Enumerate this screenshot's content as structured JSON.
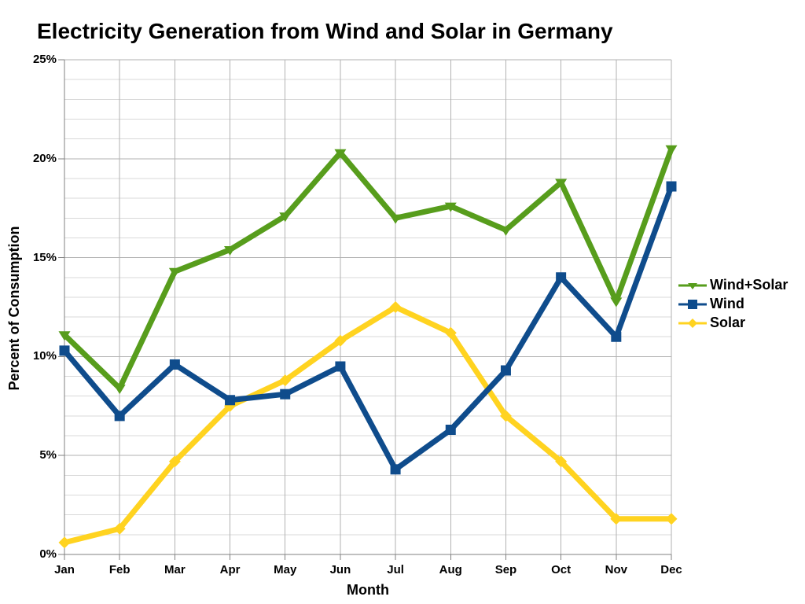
{
  "title": "Electricity Generation from Wind and Solar in Germany",
  "chart_data": {
    "type": "line",
    "title": "Electricity Generation from Wind and Solar in Germany",
    "xlabel": "Month",
    "ylabel": "Percent of Consumption",
    "categories": [
      "Jan",
      "Feb",
      "Mar",
      "Apr",
      "May",
      "Jun",
      "Jul",
      "Aug",
      "Sep",
      "Oct",
      "Nov",
      "Dec"
    ],
    "y_tick_labels": [
      "0%",
      "5%",
      "10%",
      "15%",
      "20%",
      "25%"
    ],
    "ylim": [
      0,
      25
    ],
    "y_major_step": 5,
    "y_minor_step": 1,
    "grid": true,
    "legend_position": "right",
    "series": [
      {
        "name": "Wind+Solar",
        "color": "#579D1C",
        "marker": "triangle-down",
        "values": [
          11.1,
          8.4,
          14.3,
          15.4,
          17.1,
          20.3,
          17.0,
          17.6,
          16.4,
          18.8,
          12.8,
          20.5
        ]
      },
      {
        "name": "Wind",
        "color": "#0F4C8C",
        "marker": "square",
        "values": [
          10.3,
          7.0,
          9.6,
          7.8,
          8.1,
          9.5,
          4.3,
          6.3,
          9.3,
          14.0,
          11.0,
          18.6
        ]
      },
      {
        "name": "Solar",
        "color": "#FFD320",
        "marker": "diamond",
        "values": [
          0.6,
          1.3,
          4.7,
          7.5,
          8.8,
          10.8,
          12.5,
          11.2,
          7.0,
          4.7,
          1.8,
          1.8
        ]
      }
    ]
  }
}
